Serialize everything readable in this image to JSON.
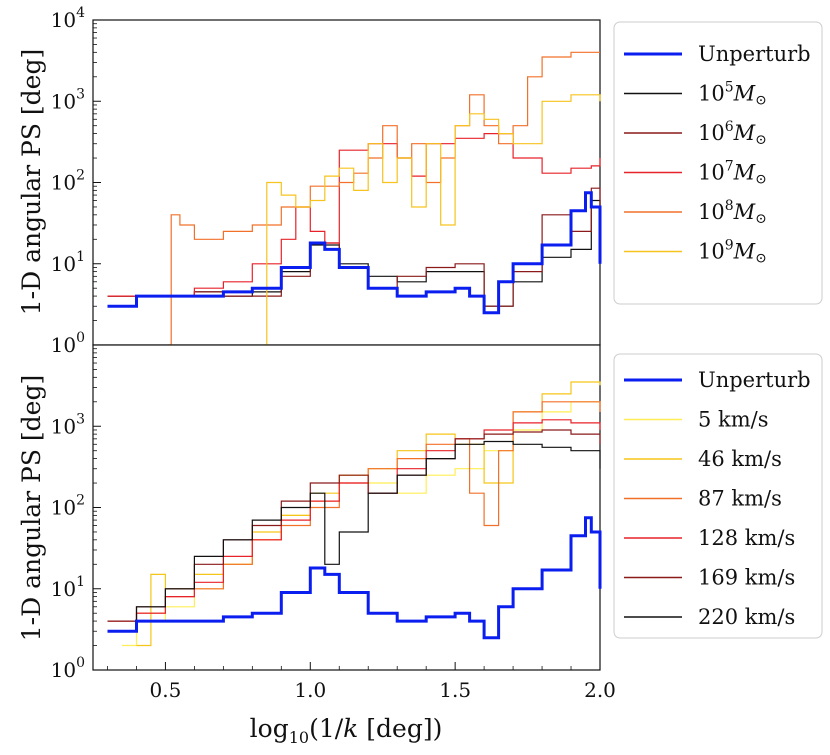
{
  "chart_data": [
    {
      "type": "line",
      "panel": "top",
      "ylabel": "1-D angular PS [deg]",
      "yscale": "log",
      "ylim": [
        1,
        10000
      ],
      "xlim": [
        0.25,
        2.0
      ],
      "yticks": [
        {
          "base": "10",
          "exp": "0"
        },
        {
          "base": "10",
          "exp": "1"
        },
        {
          "base": "10",
          "exp": "2"
        },
        {
          "base": "10",
          "exp": "3"
        },
        {
          "base": "10",
          "exp": "4"
        }
      ],
      "legend": "outside-right",
      "series": [
        {
          "name": "Unperturb",
          "color": "#0b1ef0",
          "width": 3.0,
          "x": [
            0.3,
            0.4,
            0.5,
            0.6,
            0.7,
            0.8,
            0.9,
            1.0,
            1.05,
            1.1,
            1.2,
            1.3,
            1.4,
            1.5,
            1.55,
            1.6,
            1.65,
            1.7,
            1.8,
            1.9,
            1.95,
            1.97,
            2.0
          ],
          "y": [
            3,
            4,
            4,
            4,
            4.5,
            5,
            9,
            18,
            15,
            9,
            5,
            4,
            4.5,
            5,
            4,
            2.5,
            6,
            10,
            17,
            45,
            75,
            50,
            10
          ]
        },
        {
          "name": "10^5 M_sun",
          "label_base": "10",
          "label_exp": "5",
          "label_unit": "M",
          "color": "#111111",
          "width": 1.2,
          "x": [
            0.3,
            0.4,
            0.5,
            0.6,
            0.7,
            0.8,
            0.9,
            1.0,
            1.1,
            1.2,
            1.3,
            1.4,
            1.5,
            1.55,
            1.6,
            1.7,
            1.8,
            1.9,
            1.97,
            2.0
          ],
          "y": [
            4,
            4,
            4,
            4.5,
            4,
            4.5,
            8,
            17,
            10,
            7,
            6,
            8,
            8,
            8,
            3,
            6,
            12,
            15,
            60,
            10
          ]
        },
        {
          "name": "10^6 M_sun",
          "label_base": "10",
          "label_exp": "6",
          "label_unit": "M",
          "color": "#8b1a1a",
          "width": 1.2,
          "x": [
            0.3,
            0.4,
            0.5,
            0.6,
            0.7,
            0.8,
            0.9,
            1.0,
            1.1,
            1.2,
            1.3,
            1.4,
            1.5,
            1.6,
            1.7,
            1.8,
            1.9,
            1.97,
            2.0
          ],
          "y": [
            4,
            4,
            4,
            4.5,
            4,
            4,
            7,
            18,
            9,
            5,
            7,
            9,
            10,
            3,
            8,
            40,
            25,
            85,
            12
          ]
        },
        {
          "name": "10^7 M_sun",
          "label_base": "10",
          "label_exp": "7",
          "label_unit": "M",
          "color": "#e8222a",
          "width": 1.2,
          "x": [
            0.3,
            0.4,
            0.5,
            0.6,
            0.7,
            0.8,
            0.9,
            0.95,
            1.0,
            1.05,
            1.1,
            1.2,
            1.3,
            1.35,
            1.4,
            1.5,
            1.6,
            1.7,
            1.8,
            1.9,
            1.97,
            2.0
          ],
          "y": [
            4,
            4,
            4,
            5,
            6,
            10,
            20,
            50,
            25,
            18,
            250,
            300,
            200,
            120,
            300,
            350,
            400,
            200,
            130,
            150,
            160,
            200
          ]
        },
        {
          "name": "10^8 M_sun",
          "label_base": "10",
          "label_exp": "8",
          "label_unit": "M",
          "color": "#f2712a",
          "width": 1.2,
          "x": [
            0.51,
            0.52,
            0.55,
            0.6,
            0.7,
            0.8,
            0.9,
            1.0,
            1.1,
            1.15,
            1.2,
            1.25,
            1.3,
            1.35,
            1.4,
            1.45,
            1.5,
            1.55,
            1.6,
            1.65,
            1.7,
            1.75,
            1.8,
            1.9,
            2.0
          ],
          "y": [
            1,
            40,
            30,
            20,
            25,
            30,
            50,
            90,
            100,
            130,
            200,
            500,
            200,
            300,
            100,
            200,
            500,
            1200,
            500,
            300,
            500,
            2000,
            3500,
            4000,
            4000
          ]
        },
        {
          "name": "10^9 M_sun",
          "label_base": "10",
          "label_exp": "9",
          "label_unit": "M",
          "color": "#f7c31e",
          "width": 1.2,
          "x": [
            0.84,
            0.85,
            0.9,
            0.95,
            1.0,
            1.05,
            1.1,
            1.15,
            1.2,
            1.25,
            1.3,
            1.35,
            1.4,
            1.45,
            1.5,
            1.55,
            1.6,
            1.65,
            1.7,
            1.75,
            1.8,
            1.9,
            2.0
          ],
          "y": [
            1,
            100,
            70,
            50,
            60,
            120,
            150,
            80,
            300,
            100,
            200,
            50,
            300,
            30,
            500,
            700,
            600,
            400,
            300,
            300,
            1000,
            1200,
            1000
          ]
        }
      ]
    },
    {
      "type": "line",
      "panel": "bottom",
      "xlabel": "log10(1/k [deg])",
      "ylabel": "1-D angular PS [deg]",
      "yscale": "log",
      "ylim": [
        1,
        10000
      ],
      "xlim": [
        0.25,
        2.0
      ],
      "xticks": [
        "0.5",
        "1.0",
        "1.5",
        "2.0"
      ],
      "yticks": [
        {
          "base": "10",
          "exp": "0"
        },
        {
          "base": "10",
          "exp": "1"
        },
        {
          "base": "10",
          "exp": "2"
        },
        {
          "base": "10",
          "exp": "3"
        }
      ],
      "legend": "outside-right",
      "series": [
        {
          "name": "Unperturb",
          "color": "#0b1ef0",
          "width": 3.0,
          "x": [
            0.3,
            0.4,
            0.5,
            0.6,
            0.7,
            0.8,
            0.9,
            1.0,
            1.05,
            1.1,
            1.2,
            1.3,
            1.4,
            1.5,
            1.55,
            1.6,
            1.65,
            1.7,
            1.8,
            1.9,
            1.95,
            1.97,
            2.0
          ],
          "y": [
            3,
            4,
            4,
            4,
            4.5,
            5,
            9,
            18,
            15,
            9,
            5,
            4,
            4.5,
            5,
            4,
            2.5,
            6,
            10,
            17,
            45,
            75,
            50,
            10
          ]
        },
        {
          "name": "5 km/s",
          "color": "#ffee55",
          "width": 1.2,
          "x": [
            0.35,
            0.4,
            0.5,
            0.6,
            0.7,
            0.8,
            0.9,
            1.0,
            1.1,
            1.2,
            1.3,
            1.4,
            1.5,
            1.6,
            1.7,
            1.8,
            1.9,
            2.0
          ],
          "y": [
            2,
            4,
            6,
            10,
            20,
            40,
            80,
            120,
            250,
            200,
            150,
            250,
            300,
            500,
            900,
            1500,
            2000,
            1800
          ]
        },
        {
          "name": "46 km/s",
          "color": "#f5c518",
          "width": 1.2,
          "x": [
            0.4,
            0.45,
            0.5,
            0.6,
            0.7,
            0.8,
            0.9,
            1.0,
            1.1,
            1.2,
            1.3,
            1.4,
            1.5,
            1.6,
            1.7,
            1.8,
            1.9,
            2.0
          ],
          "y": [
            2,
            15,
            10,
            15,
            20,
            50,
            80,
            150,
            250,
            300,
            500,
            800,
            600,
            200,
            1500,
            2500,
            3500,
            3200
          ]
        },
        {
          "name": "87 km/s",
          "color": "#f2712a",
          "width": 1.2,
          "x": [
            0.4,
            0.5,
            0.6,
            0.7,
            0.8,
            0.9,
            1.0,
            1.1,
            1.2,
            1.3,
            1.4,
            1.5,
            1.55,
            1.6,
            1.65,
            1.7,
            1.8,
            1.9,
            2.0
          ],
          "y": [
            5,
            8,
            10,
            20,
            40,
            60,
            100,
            200,
            300,
            400,
            600,
            700,
            150,
            60,
            500,
            1500,
            2000,
            2000,
            1500
          ]
        },
        {
          "name": "128 km/s",
          "color": "#e8222a",
          "width": 1.2,
          "x": [
            0.3,
            0.4,
            0.5,
            0.6,
            0.7,
            0.8,
            0.9,
            1.0,
            1.1,
            1.2,
            1.3,
            1.4,
            1.5,
            1.6,
            1.7,
            1.8,
            1.9,
            2.0
          ],
          "y": [
            4,
            5,
            8,
            12,
            25,
            40,
            70,
            120,
            200,
            150,
            300,
            500,
            700,
            900,
            1100,
            1200,
            1100,
            900
          ]
        },
        {
          "name": "169 km/s",
          "color": "#8b1a1a",
          "width": 1.2,
          "x": [
            0.3,
            0.4,
            0.5,
            0.6,
            0.7,
            0.8,
            0.9,
            1.0,
            1.1,
            1.2,
            1.3,
            1.4,
            1.5,
            1.6,
            1.7,
            1.8,
            1.9,
            2.0
          ],
          "y": [
            4,
            6,
            10,
            20,
            40,
            60,
            120,
            200,
            250,
            150,
            250,
            400,
            700,
            800,
            850,
            900,
            800,
            600
          ]
        },
        {
          "name": "220 km/s",
          "color": "#111111",
          "width": 1.2,
          "x": [
            0.3,
            0.4,
            0.5,
            0.6,
            0.7,
            0.8,
            0.9,
            1.0,
            1.05,
            1.1,
            1.2,
            1.3,
            1.4,
            1.5,
            1.6,
            1.7,
            1.8,
            1.9,
            2.0
          ],
          "y": [
            3,
            6,
            10,
            25,
            40,
            70,
            100,
            150,
            20,
            50,
            150,
            250,
            400,
            600,
            650,
            600,
            550,
            500,
            300
          ]
        }
      ]
    }
  ]
}
